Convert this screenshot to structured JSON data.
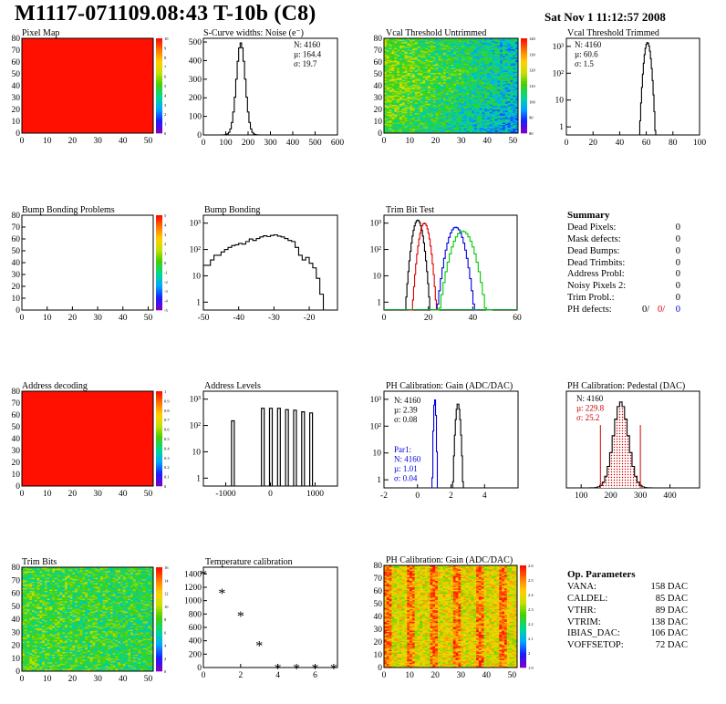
{
  "page": {
    "title": "M1117-071109.08:43 T-10b (C8)",
    "date": "Sat Nov  1 11:12:57 2008"
  },
  "chart_data": [
    {
      "id": "pixel_map",
      "type": "heatmap",
      "title": "Pixel Map",
      "xlim": [
        0,
        52
      ],
      "ylim": [
        0,
        80
      ],
      "fill": "uniform",
      "value": 10,
      "zlim": [
        0,
        10
      ],
      "xticks": [
        "0",
        "10",
        "20",
        "30",
        "40",
        "50"
      ],
      "yticks": [
        "0",
        "10",
        "20",
        "30",
        "40",
        "50",
        "60",
        "70",
        "80"
      ],
      "zticks": [
        "0",
        "1",
        "2",
        "3",
        "4",
        "5",
        "6",
        "7",
        "8",
        "9",
        "10"
      ]
    },
    {
      "id": "scurve",
      "type": "histogram",
      "title": "S-Curve widths: Noise (e⁻)",
      "log_y": false,
      "xlim": [
        0,
        600
      ],
      "ylim": [
        0,
        520
      ],
      "xticks": [
        "0",
        "100",
        "200",
        "300",
        "400",
        "500",
        "600"
      ],
      "yticks": [
        "0",
        "100",
        "200",
        "300",
        "400",
        "500"
      ],
      "stats": [
        "N: 4160",
        "µ: 164.4",
        "σ: 19.7"
      ],
      "series": [
        {
          "color": "#000000",
          "gauss": {
            "mu": 164.4,
            "sigma": 19.7,
            "peak": 495
          }
        }
      ]
    },
    {
      "id": "vcal_untrimmed",
      "type": "heatmap",
      "title": "Vcal Threshold Untrimmed",
      "xlim": [
        0,
        52
      ],
      "ylim": [
        0,
        80
      ],
      "fill": "noise",
      "zlim": [
        80,
        140
      ],
      "center": 0.45,
      "xticks": [
        "0",
        "10",
        "20",
        "30",
        "40",
        "50"
      ],
      "yticks": [
        "0",
        "10",
        "20",
        "30",
        "40",
        "50",
        "60",
        "70",
        "80"
      ],
      "zticks": [
        "80",
        "90",
        "100",
        "110",
        "120",
        "130",
        "140"
      ]
    },
    {
      "id": "vcal_trimmed",
      "type": "histogram",
      "title": "Vcal Threshold Trimmed",
      "log_y": true,
      "xlim": [
        0,
        100
      ],
      "ylim": [
        0.5,
        2000
      ],
      "xticks": [
        "0",
        "20",
        "40",
        "60",
        "80",
        "100"
      ],
      "stats": [
        "N: 4160",
        "µ: 60.6",
        "σ:  1.5"
      ],
      "series": [
        {
          "color": "#000000",
          "gauss": {
            "mu": 60.6,
            "sigma": 1.5,
            "peak": 1400
          }
        }
      ]
    },
    {
      "id": "bump_problems",
      "type": "heatmap",
      "title": "Bump Bonding Problems",
      "xlim": [
        0,
        52
      ],
      "ylim": [
        0,
        80
      ],
      "fill": "none",
      "zlim": [
        -5,
        5
      ],
      "xticks": [
        "0",
        "10",
        "20",
        "30",
        "40",
        "50"
      ],
      "yticks": [
        "0",
        "10",
        "20",
        "30",
        "40",
        "50",
        "60",
        "70",
        "80"
      ],
      "zticks": [
        "-5",
        "-4",
        "-3",
        "-2",
        "-1",
        "0",
        "1",
        "2",
        "3",
        "4",
        "5"
      ]
    },
    {
      "id": "bump_bonding",
      "type": "histogram",
      "title": "Bump Bonding",
      "log_y": true,
      "xlim": [
        -50,
        -12
      ],
      "ylim": [
        0.5,
        2000
      ],
      "xticks": [
        "-50",
        "-40",
        "-30",
        "-20"
      ],
      "series": [
        {
          "color": "#000000",
          "points": [
            [
              -50,
              25
            ],
            [
              -49,
              25
            ],
            [
              -48,
              40
            ],
            [
              -47,
              60
            ],
            [
              -46,
              60
            ],
            [
              -45,
              80
            ],
            [
              -44,
              100
            ],
            [
              -43,
              120
            ],
            [
              -42,
              140
            ],
            [
              -41,
              150
            ],
            [
              -40,
              170
            ],
            [
              -39,
              160
            ],
            [
              -38,
              200
            ],
            [
              -37,
              250
            ],
            [
              -36,
              220
            ],
            [
              -35,
              260
            ],
            [
              -34,
              300
            ],
            [
              -33,
              330
            ],
            [
              -32,
              310
            ],
            [
              -31,
              340
            ],
            [
              -30,
              360
            ],
            [
              -29,
              320
            ],
            [
              -28,
              300
            ],
            [
              -27,
              260
            ],
            [
              -26,
              220
            ],
            [
              -25,
              200
            ],
            [
              -24,
              120
            ],
            [
              -23,
              60
            ],
            [
              -22,
              40
            ],
            [
              -21,
              50
            ],
            [
              -20,
              30
            ],
            [
              -19,
              20
            ],
            [
              -18,
              8
            ],
            [
              -17,
              2
            ],
            [
              -16,
              1
            ]
          ]
        }
      ]
    },
    {
      "id": "trim_bit_test",
      "type": "histogram",
      "title": "Trim Bit Test",
      "log_y": true,
      "xlim": [
        0,
        60
      ],
      "ylim": [
        0.5,
        2000
      ],
      "xticks": [
        "0",
        "20",
        "40",
        "60"
      ],
      "series": [
        {
          "color": "#000000",
          "gauss": {
            "mu": 15,
            "sigma": 1.4,
            "peak": 1300
          }
        },
        {
          "color": "#dd0000",
          "gauss": {
            "mu": 18,
            "sigma": 1.4,
            "peak": 1000
          }
        },
        {
          "color": "#0000dd",
          "gauss": {
            "mu": 32,
            "sigma": 2.2,
            "peak": 700
          }
        },
        {
          "color": "#00cc00",
          "gauss": {
            "mu": 35,
            "sigma": 2.8,
            "peak": 500
          }
        }
      ]
    },
    {
      "id": "address_decoding",
      "type": "heatmap",
      "title": "Address decoding",
      "xlim": [
        0,
        52
      ],
      "ylim": [
        0,
        80
      ],
      "fill": "uniform",
      "value": 1,
      "zlim": [
        0,
        1
      ],
      "xticks": [
        "0",
        "10",
        "20",
        "30",
        "40",
        "50"
      ],
      "yticks": [
        "0",
        "10",
        "20",
        "30",
        "40",
        "50",
        "60",
        "70",
        "80"
      ],
      "zticks": [
        "0",
        "0.1",
        "0.2",
        "0.3",
        "0.4",
        "0.5",
        "0.6",
        "0.7",
        "0.8",
        "0.9",
        "1"
      ]
    },
    {
      "id": "address_levels",
      "type": "histogram",
      "title": "Address Levels",
      "log_y": true,
      "xlim": [
        -1500,
        1500
      ],
      "ylim": [
        0.5,
        2000
      ],
      "xticks": [
        "-1000",
        "0",
        "1000"
      ],
      "series": [
        {
          "color": "#000000",
          "spikes": [
            [
              -850,
              150
            ],
            [
              -180,
              450
            ],
            [
              0,
              450
            ],
            [
              180,
              450
            ],
            [
              360,
              400
            ],
            [
              540,
              380
            ],
            [
              720,
              330
            ],
            [
              900,
              300
            ]
          ],
          "spike_width": 14
        }
      ]
    },
    {
      "id": "ph_gain",
      "type": "histogram",
      "title": "PH Calibration: Gain (ADC/DAC)",
      "log_y": true,
      "xlim": [
        -2,
        6
      ],
      "ylim": [
        0.5,
        2000
      ],
      "xticks": [
        "-2",
        "0",
        "2",
        "4"
      ],
      "stats": [
        "N: 4160",
        "µ: 2.39",
        "σ: 0.08"
      ],
      "stats2": [
        "Par1:",
        "N: 4160",
        "µ: 1.01",
        "σ: 0.04"
      ],
      "series": [
        {
          "color": "#000000",
          "gauss": {
            "mu": 2.39,
            "sigma": 0.08,
            "peak": 700
          }
        },
        {
          "color": "#0000dd",
          "gauss": {
            "mu": 1.01,
            "sigma": 0.04,
            "peak": 1000
          }
        }
      ]
    },
    {
      "id": "ph_pedestal",
      "type": "histogram",
      "title": "PH Calibration: Pedestal (DAC)",
      "log_y": false,
      "xlim": [
        50,
        500
      ],
      "ylim": [
        0,
        90
      ],
      "xticks": [
        "100",
        "200",
        "300",
        "400"
      ],
      "stats": [
        "N: 4160",
        "µ: 229.8",
        "σ: 25.2"
      ],
      "cut_lines": [
        165,
        300
      ],
      "series": [
        {
          "color": "#000000",
          "gauss": {
            "mu": 229.8,
            "sigma": 25.2,
            "peak": 80
          },
          "hatched": true
        }
      ]
    },
    {
      "id": "trim_bits",
      "type": "heatmap",
      "title": "Trim Bits",
      "xlim": [
        0,
        52
      ],
      "ylim": [
        0,
        80
      ],
      "fill": "noise",
      "zlim": [
        0,
        16
      ],
      "center": 0.55,
      "xticks": [
        "0",
        "10",
        "20",
        "30",
        "40",
        "50"
      ],
      "yticks": [
        "0",
        "10",
        "20",
        "30",
        "40",
        "50",
        "60",
        "70",
        "80"
      ],
      "zticks": [
        "0",
        "2",
        "4",
        "6",
        "8",
        "10",
        "12",
        "14",
        "16"
      ]
    },
    {
      "id": "temperature",
      "type": "scatter",
      "title": "Temperature calibration",
      "xlim": [
        0,
        7.2
      ],
      "ylim": [
        0,
        1500
      ],
      "xticks": [
        "0",
        "2",
        "4",
        "6"
      ],
      "yticks": [
        "0",
        "200",
        "400",
        "600",
        "800",
        "1000",
        "1200",
        "1400"
      ],
      "marker": "*",
      "x": [
        0,
        1,
        2,
        3,
        4,
        5,
        6,
        7
      ],
      "y": [
        1410,
        1130,
        790,
        350,
        5,
        5,
        5,
        5
      ]
    },
    {
      "id": "ph_gain_map",
      "type": "heatmap",
      "title": "PH Calibration: Gain (ADC/DAC)",
      "xlim": [
        0,
        52
      ],
      "ylim": [
        0,
        80
      ],
      "fill": "noise_bands",
      "zlim": [
        1.9,
        2.6
      ],
      "xticks": [
        "0",
        "10",
        "20",
        "30",
        "40",
        "50"
      ],
      "yticks": [
        "0",
        "10",
        "20",
        "30",
        "40",
        "50",
        "60",
        "70",
        "80"
      ],
      "zticks": [
        "1.9",
        "2",
        "2.1",
        "2.2",
        "2.3",
        "2.4",
        "2.5",
        "2.6"
      ]
    }
  ],
  "summary": {
    "title": "Summary",
    "rows": [
      {
        "label": "Dead Pixels:",
        "value": "0"
      },
      {
        "label": "Mask defects:",
        "value": "0"
      },
      {
        "label": "Dead Bumps:",
        "value": "0"
      },
      {
        "label": "Dead Trimbits:",
        "value": "0"
      },
      {
        "label": "Address Probl:",
        "value": "0"
      },
      {
        "label": "Noisy Pixels 2:",
        "value": "0"
      },
      {
        "label": "Trim Probl.:",
        "value": "0"
      }
    ],
    "ph_defects": {
      "label": "PH defects:",
      "v1": "0/",
      "v2": "0/",
      "v3": "0",
      "c1": "#000000",
      "c2": "#dd0000",
      "c3": "#0000dd"
    }
  },
  "op_params": {
    "title": "Op. Parameters",
    "rows": [
      {
        "label": "VANA:",
        "value": "158 DAC"
      },
      {
        "label": "CALDEL:",
        "value": "85 DAC"
      },
      {
        "label": "VTHR:",
        "value": "89 DAC"
      },
      {
        "label": "VTRIM:",
        "value": "138 DAC"
      },
      {
        "label": "IBIAS_DAC:",
        "value": "106 DAC"
      },
      {
        "label": "VOFFSETOP:",
        "value": "72 DAC"
      }
    ]
  }
}
